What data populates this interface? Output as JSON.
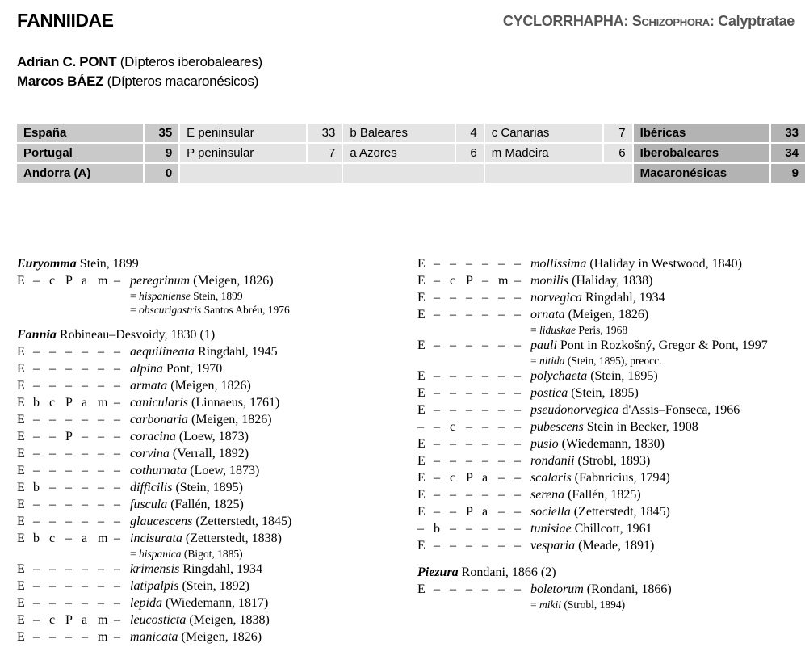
{
  "header": {
    "family": "FANNIIDAE",
    "classification": {
      "order": "CYCLORRHAPHA",
      "sep1": ": ",
      "section": "Schizophora",
      "sep2": ": ",
      "group": "Calyptratae"
    }
  },
  "authors": [
    {
      "name": "Adrian C. PONT",
      "role": " (Dípteros iberobaleares)"
    },
    {
      "name": "Marcos BÁEZ",
      "role": " (Dípteros macaronésicos)"
    }
  ],
  "stats": [
    [
      {
        "label": "España",
        "value": "35"
      },
      {
        "label": "E peninsular",
        "value": "33"
      },
      {
        "label": "b Baleares",
        "value": "4"
      },
      {
        "label": "c Canarias",
        "value": "7"
      },
      {
        "label": "Ibéricas",
        "value": "33"
      }
    ],
    [
      {
        "label": "Portugal",
        "value": "9"
      },
      {
        "label": "P peninsular",
        "value": "7"
      },
      {
        "label": "a Azores",
        "value": "6"
      },
      {
        "label": "m Madeira",
        "value": "6"
      },
      {
        "label": "Iberobaleares",
        "value": "34"
      }
    ],
    [
      {
        "label": "Andorra (A)",
        "value": "0"
      },
      null,
      null,
      null,
      {
        "label": "Macaronésicas",
        "value": "9"
      }
    ]
  ],
  "columns": [
    [
      {
        "genus": "Euryomma",
        "author": " Stein, 1899",
        "rows": [
          {
            "codes": [
              "E",
              "–",
              "c",
              "P",
              "a",
              "m",
              "–"
            ],
            "name": "peregrinum",
            "author": " (Meigen, 1826)",
            "synonyms": [
              {
                "name": "hispaniense",
                "author": " Stein, 1899"
              },
              {
                "name": "obscurigastris",
                "author": " Santos Abréu, 1976"
              }
            ]
          }
        ]
      },
      {
        "genus": "Fannia",
        "author": " Robineau–Desvoidy, 1830 (1)",
        "rows": [
          {
            "codes": [
              "E",
              "–",
              "–",
              "–",
              "–",
              "–",
              "–"
            ],
            "name": "aequilineata",
            "author": " Ringdahl, 1945"
          },
          {
            "codes": [
              "E",
              "–",
              "–",
              "–",
              "–",
              "–",
              "–"
            ],
            "name": "alpina",
            "author": " Pont, 1970"
          },
          {
            "codes": [
              "E",
              "–",
              "–",
              "–",
              "–",
              "–",
              "–"
            ],
            "name": "armata",
            "author": " (Meigen, 1826)"
          },
          {
            "codes": [
              "E",
              "b",
              "c",
              "P",
              "a",
              "m",
              "–"
            ],
            "name": "canicularis",
            "author": " (Linnaeus, 1761)"
          },
          {
            "codes": [
              "E",
              "–",
              "–",
              "–",
              "–",
              "–",
              "–"
            ],
            "name": "carbonaria",
            "author": " (Meigen, 1826)"
          },
          {
            "codes": [
              "E",
              "–",
              "–",
              "P",
              "–",
              "–",
              "–"
            ],
            "name": "coracina",
            "author": " (Loew, 1873)"
          },
          {
            "codes": [
              "E",
              "–",
              "–",
              "–",
              "–",
              "–",
              "–"
            ],
            "name": "corvina",
            "author": " (Verrall, 1892)"
          },
          {
            "codes": [
              "E",
              "–",
              "–",
              "–",
              "–",
              "–",
              "–"
            ],
            "name": "cothurnata",
            "author": " (Loew, 1873)"
          },
          {
            "codes": [
              "E",
              "b",
              "–",
              "–",
              "–",
              "–",
              "–"
            ],
            "name": "difficilis",
            "author": " (Stein, 1895)"
          },
          {
            "codes": [
              "E",
              "–",
              "–",
              "–",
              "–",
              "–",
              "–"
            ],
            "name": "fuscula",
            "author": " (Fallén, 1825)"
          },
          {
            "codes": [
              "E",
              "–",
              "–",
              "–",
              "–",
              "–",
              "–"
            ],
            "name": "glaucescens",
            "author": " (Zetterstedt, 1845)"
          },
          {
            "codes": [
              "E",
              "b",
              "c",
              "–",
              "a",
              "m",
              "–"
            ],
            "name": "incisurata",
            "author": " (Zetterstedt, 1838)",
            "synonyms": [
              {
                "name": "hispanica",
                "author": " (Bigot, 1885)"
              }
            ]
          },
          {
            "codes": [
              "E",
              "–",
              "–",
              "–",
              "–",
              "–",
              "–"
            ],
            "name": "krimensis",
            "author": " Ringdahl, 1934"
          },
          {
            "codes": [
              "E",
              "–",
              "–",
              "–",
              "–",
              "–",
              "–"
            ],
            "name": "latipalpis",
            "author": " (Stein, 1892)"
          },
          {
            "codes": [
              "E",
              "–",
              "–",
              "–",
              "–",
              "–",
              "–"
            ],
            "name": "lepida",
            "author": " (Wiedemann, 1817)"
          },
          {
            "codes": [
              "E",
              "–",
              "c",
              "P",
              "a",
              "m",
              "–"
            ],
            "name": "leucosticta",
            "author": " (Meigen, 1838)"
          },
          {
            "codes": [
              "E",
              "–",
              "–",
              "–",
              "–",
              "m",
              "–"
            ],
            "name": "manicata",
            "author": " (Meigen, 1826)"
          }
        ]
      }
    ],
    [
      {
        "genus": null,
        "rows": [
          {
            "codes": [
              "E",
              "–",
              "–",
              "–",
              "–",
              "–",
              "–"
            ],
            "name": "mollissima",
            "author": " (Haliday in Westwood, 1840)"
          },
          {
            "codes": [
              "E",
              "–",
              "c",
              "P",
              "–",
              "m",
              "–"
            ],
            "name": "monilis",
            "author": " (Haliday, 1838)"
          },
          {
            "codes": [
              "E",
              "–",
              "–",
              "–",
              "–",
              "–",
              "–"
            ],
            "name": "norvegica",
            "author": " Ringdahl, 1934"
          },
          {
            "codes": [
              "E",
              "–",
              "–",
              "–",
              "–",
              "–",
              "–"
            ],
            "name": "ornata",
            "author": " (Meigen, 1826)",
            "synonyms": [
              {
                "name": "liduskae",
                "author": " Peris, 1968"
              }
            ]
          },
          {
            "codes": [
              "E",
              "–",
              "–",
              "–",
              "–",
              "–",
              "–"
            ],
            "name": "pauli",
            "author": " Pont in Rozkošný, Gregor & Pont, 1997",
            "synonyms": [
              {
                "name": "nitida",
                "author": " (Stein, 1895), preocc."
              }
            ]
          },
          {
            "codes": [
              "E",
              "–",
              "–",
              "–",
              "–",
              "–",
              "–"
            ],
            "name": "polychaeta",
            "author": " (Stein, 1895)"
          },
          {
            "codes": [
              "E",
              "–",
              "–",
              "–",
              "–",
              "–",
              "–"
            ],
            "name": "postica",
            "author": " (Stein, 1895)"
          },
          {
            "codes": [
              "E",
              "–",
              "–",
              "–",
              "–",
              "–",
              "–"
            ],
            "name": "pseudonorvegica",
            "author": " d'Assis–Fonseca, 1966"
          },
          {
            "codes": [
              "–",
              "–",
              "c",
              "–",
              "–",
              "–",
              "–"
            ],
            "name": "pubescens",
            "author": " Stein in Becker, 1908"
          },
          {
            "codes": [
              "E",
              "–",
              "–",
              "–",
              "–",
              "–",
              "–"
            ],
            "name": "pusio",
            "author": " (Wiedemann, 1830)"
          },
          {
            "codes": [
              "E",
              "–",
              "–",
              "–",
              "–",
              "–",
              "–"
            ],
            "name": "rondanii",
            "author": " (Strobl, 1893)"
          },
          {
            "codes": [
              "E",
              "–",
              "c",
              "P",
              "a",
              "–",
              "–"
            ],
            "name": "scalaris",
            "author": " (Fabnricius, 1794)"
          },
          {
            "codes": [
              "E",
              "–",
              "–",
              "–",
              "–",
              "–",
              "–"
            ],
            "name": "serena",
            "author": " (Fallén, 1825)"
          },
          {
            "codes": [
              "E",
              "–",
              "–",
              "P",
              "a",
              "–",
              "–"
            ],
            "name": "sociella",
            "author": " (Zetterstedt, 1845)"
          },
          {
            "codes": [
              "–",
              "b",
              "–",
              "–",
              "–",
              "–",
              "–"
            ],
            "name": "tunisiae",
            "author": " Chillcott, 1961"
          },
          {
            "codes": [
              "E",
              "–",
              "–",
              "–",
              "–",
              "–",
              "–"
            ],
            "name": "vesparia",
            "author": " (Meade, 1891)"
          }
        ]
      },
      {
        "genus": "Piezura",
        "author": " Rondani, 1866 (2)",
        "rows": [
          {
            "codes": [
              "E",
              "–",
              "–",
              "–",
              "–",
              "–",
              "–"
            ],
            "name": "boletorum",
            "author": " (Rondani, 1866)",
            "synonyms": [
              {
                "name": "mikii",
                "author": " (Strobl, 1894)"
              }
            ]
          }
        ]
      }
    ]
  ]
}
